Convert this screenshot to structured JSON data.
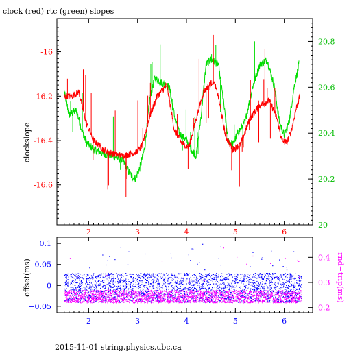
{
  "title": "clock (red) rtc (green) slopes",
  "footer": "2015-11-01 string.physics.ubc.ca",
  "colors": {
    "clock": "#ff0000",
    "rtc": "#00dd00",
    "offset": "#0000ff",
    "rndtrip": "#ff00ff",
    "frame": "#000000"
  },
  "chart_data": [
    {
      "type": "line",
      "ylabel": "clockslope",
      "y2label": "",
      "xlim": [
        1.35,
        6.58
      ],
      "ylim": [
        -16.78,
        -15.85
      ],
      "y2lim": [
        20.0,
        20.9
      ],
      "xticks": [
        "2",
        "3",
        "4",
        "5",
        "6"
      ],
      "xtick_values": [
        2,
        3,
        4,
        5,
        6
      ],
      "yticks": [
        "-16",
        "-16.2",
        "-16.4",
        "-16.6"
      ],
      "ytick_values": [
        -16.0,
        -16.2,
        -16.4,
        -16.6
      ],
      "y2ticks": [
        "20.8",
        "20.6",
        "20.4",
        "20.2",
        "20"
      ],
      "y2tick_values": [
        20.8,
        20.6,
        20.4,
        20.2,
        20.0
      ],
      "series": [
        {
          "axis": "left",
          "x": [
            1.5,
            1.65,
            1.8,
            1.95,
            2.1,
            2.3,
            2.5,
            2.7,
            2.85,
            3.0,
            3.1,
            3.25,
            3.4,
            3.6,
            3.75,
            3.9,
            4.05,
            4.2,
            4.35,
            4.55,
            4.65,
            4.8,
            4.95,
            5.1,
            5.3,
            5.5,
            5.7,
            5.85,
            5.95,
            6.05,
            6.15,
            6.25,
            6.32
          ],
          "y": [
            -16.2,
            -16.2,
            -16.18,
            -16.32,
            -16.4,
            -16.44,
            -16.46,
            -16.47,
            -16.46,
            -16.45,
            -16.42,
            -16.29,
            -16.2,
            -16.15,
            -16.35,
            -16.41,
            -16.43,
            -16.3,
            -16.18,
            -16.13,
            -16.2,
            -16.38,
            -16.44,
            -16.42,
            -16.3,
            -16.24,
            -16.22,
            -16.3,
            -16.4,
            -16.41,
            -16.35,
            -16.25,
            -16.2
          ]
        },
        {
          "axis": "right",
          "x": [
            1.5,
            1.6,
            1.75,
            1.85,
            1.95,
            2.1,
            2.3,
            2.5,
            2.7,
            2.85,
            2.95,
            3.05,
            3.15,
            3.25,
            3.35,
            3.5,
            3.65,
            3.75,
            3.85,
            4.0,
            4.1,
            4.2,
            4.3,
            4.4,
            4.5,
            4.65,
            4.75,
            4.85,
            4.95,
            5.05,
            5.2,
            5.35,
            5.5,
            5.65,
            5.8,
            5.9,
            6.0,
            6.1,
            6.2,
            6.3
          ],
          "y": [
            20.58,
            20.48,
            20.5,
            20.42,
            20.36,
            20.33,
            20.31,
            20.3,
            20.28,
            20.22,
            20.2,
            20.25,
            20.34,
            20.55,
            20.64,
            20.62,
            20.6,
            20.48,
            20.4,
            20.37,
            20.33,
            20.3,
            20.48,
            20.7,
            20.72,
            20.7,
            20.55,
            20.37,
            20.35,
            20.4,
            20.45,
            20.6,
            20.7,
            20.72,
            20.6,
            20.45,
            20.39,
            20.45,
            20.6,
            20.7
          ]
        }
      ]
    },
    {
      "type": "scatter",
      "ylabel": "offset(ms)",
      "y2label": "rnd−trip(ms)",
      "xlim": [
        1.35,
        6.58
      ],
      "ylim": [
        -0.065,
        0.115
      ],
      "y2lim": [
        0.18,
        0.48
      ],
      "xticks": [
        "2",
        "3",
        "4",
        "5",
        "6"
      ],
      "xtick_values": [
        2,
        3,
        4,
        5,
        6
      ],
      "yticks": [
        "0.1",
        "0.05",
        "0",
        "−0.05"
      ],
      "ytick_values": [
        0.1,
        0.05,
        0.0,
        -0.05
      ],
      "y2ticks": [
        "0.4",
        "0.3",
        "0.2"
      ],
      "y2tick_values": [
        0.4,
        0.3,
        0.2
      ],
      "series": [
        {
          "axis": "left",
          "x_range": [
            1.5,
            6.35
          ],
          "y_band": [
            -0.04,
            0.03
          ],
          "outliers_to": 0.1
        },
        {
          "axis": "right",
          "x_range": [
            1.5,
            6.35
          ],
          "y_band": [
            0.22,
            0.27
          ],
          "outliers_to": 0.44
        }
      ]
    }
  ]
}
